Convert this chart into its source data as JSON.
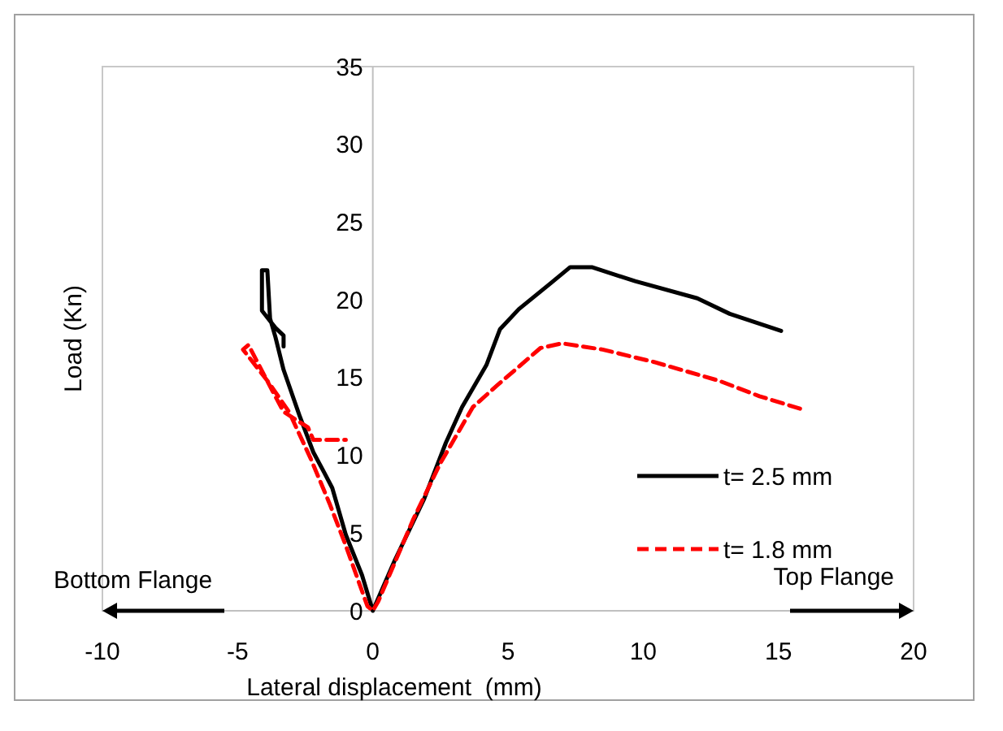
{
  "chart_data": {
    "type": "line",
    "xlabel": "Lateral displacement  (mm)",
    "ylabel": "Load (Kn)",
    "xlim": [
      -10,
      20
    ],
    "xticks": [
      -10,
      -5,
      0,
      5,
      10,
      15,
      20
    ],
    "ylim": [
      0,
      35
    ],
    "yticks": [
      0,
      5,
      10,
      15,
      20,
      25,
      30,
      35
    ],
    "grid": false,
    "legend": "right",
    "marker": "none",
    "annotations": [
      "Bottom Flange",
      "Top Flange"
    ],
    "series": [
      {
        "name": "t= 2.5 mm",
        "color": "#000000",
        "line_style": "solid",
        "x": [
          15.1,
          13.2,
          12.0,
          9.7,
          8.1,
          7.3,
          6.6,
          5.4,
          4.7,
          4.2,
          3.3,
          2.7,
          1.9,
          0.8,
          0,
          -0.4,
          -1.0,
          -1.5,
          -1.8,
          -2.2,
          -2.7,
          -3.3,
          -3.6,
          -3.8,
          -3.9,
          -4.1,
          -4.1,
          -3.6,
          -3.3,
          -3.3
        ],
        "values": [
          18.0,
          19.1,
          20.1,
          21.2,
          22.1,
          22.1,
          21.1,
          19.4,
          18.1,
          15.8,
          13.1,
          10.8,
          7.2,
          3.2,
          0,
          2.3,
          4.9,
          7.9,
          8.9,
          10.2,
          12.5,
          15.5,
          17.6,
          18.8,
          21.9,
          21.9,
          19.3,
          18.2,
          17.7,
          17.0
        ]
      },
      {
        "name": "t= 1.8 mm",
        "color": "#ff0000",
        "line_style": "dashed",
        "x": [
          15.8,
          14.3,
          12.8,
          10.4,
          8.5,
          7.0,
          6.2,
          4.6,
          3.7,
          2.5,
          1.5,
          0.2,
          0,
          -0.2,
          -1.0,
          -1.6,
          -2.3,
          -3.1,
          -3.9,
          -4.8,
          -4.6,
          -3.7,
          -3.3,
          -2.4,
          -2.2,
          -1.0
        ],
        "values": [
          13.0,
          13.8,
          14.8,
          16.0,
          16.8,
          17.2,
          16.9,
          14.5,
          13.1,
          9.5,
          5.9,
          0.6,
          0,
          0.3,
          4.2,
          6.9,
          9.8,
          12.8,
          14.8,
          16.8,
          17.1,
          14.1,
          12.8,
          11.8,
          11.0,
          11.0
        ]
      }
    ]
  }
}
